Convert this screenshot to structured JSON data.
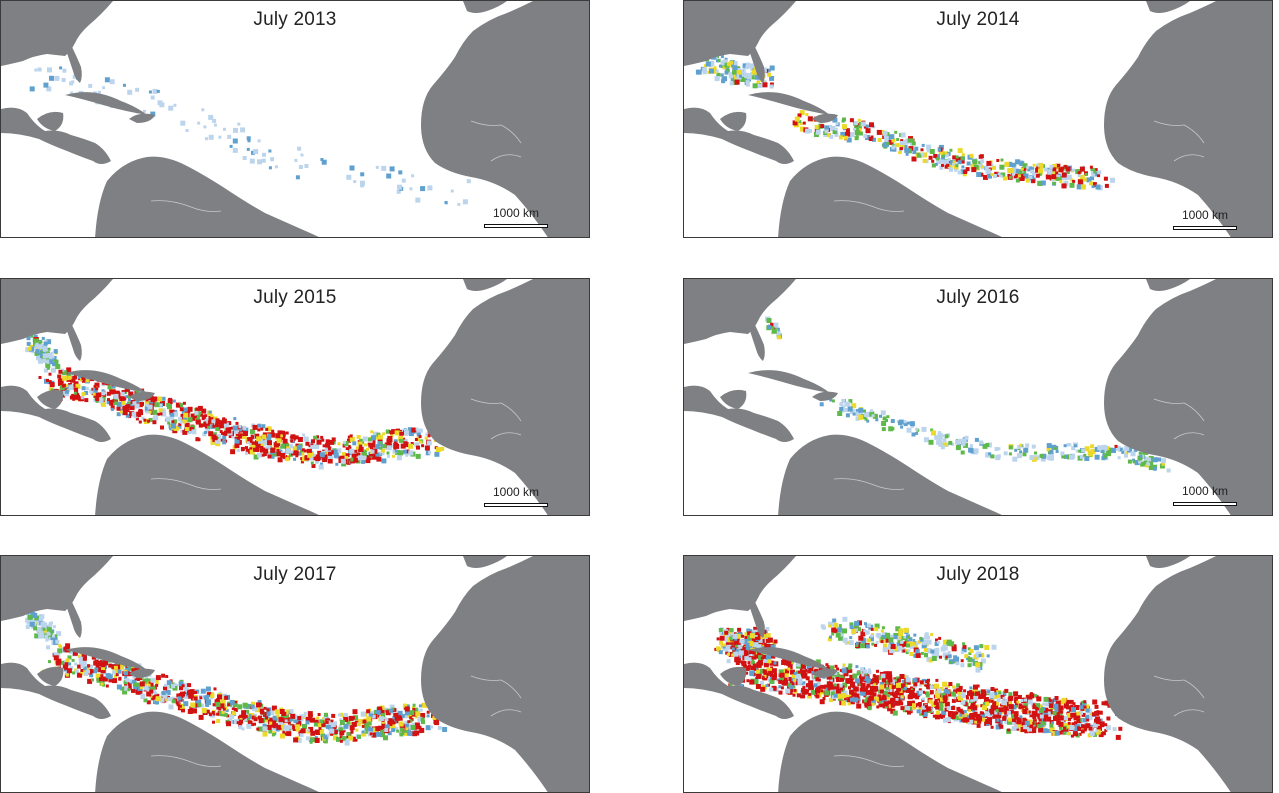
{
  "colors": {
    "land": "#7f8083",
    "ocean": "#ffffff",
    "low": "#bcd5ec",
    "mid": "#5fa0cf",
    "green": "#5fb94a",
    "yellow": "#ecd928",
    "red": "#d21212"
  },
  "panels": [
    {
      "title": "July 2013",
      "scale_label": "1000 km",
      "scalebar": true,
      "intensity": 0.05,
      "gulf": 0.1,
      "bloom": "none"
    },
    {
      "title": "July 2014",
      "scale_label": "1000 km",
      "scalebar": true,
      "intensity": 0.55,
      "gulf": 0.55,
      "bloom": "belt"
    },
    {
      "title": "July 2015",
      "scale_label": "1000 km",
      "scalebar": true,
      "intensity": 0.95,
      "gulf": 0.35,
      "bloom": "caribbean"
    },
    {
      "title": "July 2016",
      "scale_label": "1000 km",
      "scalebar": true,
      "intensity": 0.4,
      "gulf": 0.15,
      "bloom": "thin"
    },
    {
      "title": "July 2017",
      "scale_label": "",
      "scalebar": false,
      "intensity": 0.75,
      "gulf": 0.3,
      "bloom": "caribbean"
    },
    {
      "title": "July 2018",
      "scale_label": "",
      "scalebar": false,
      "intensity": 1.0,
      "gulf": 0.7,
      "bloom": "massive"
    }
  ]
}
